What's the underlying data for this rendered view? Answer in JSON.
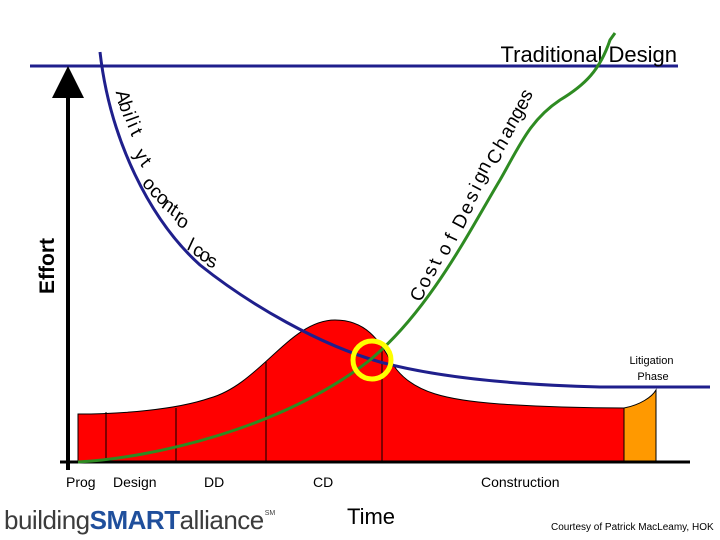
{
  "title": "Traditional Design",
  "y_axis_label": "Effort",
  "x_axis_label": "Time",
  "curve_labels": {
    "ability": "Ability to control cost",
    "cost": "Cost of Design Changes"
  },
  "litigation_label": [
    "Litigation",
    "Phase"
  ],
  "phases": [
    {
      "name": "Prog"
    },
    {
      "name": "Design"
    },
    {
      "name": "DD"
    },
    {
      "name": "CD"
    },
    {
      "name": "Construction"
    }
  ],
  "logo": {
    "part1": "building",
    "part2": "SMART",
    "part3": "alliance",
    "mark": "SM"
  },
  "credit": "Courtesy of Patrick MacLeamy, HOK",
  "colors": {
    "effort_fill": "#ff0000",
    "litigation_fill": "#ff9900",
    "ability_curve": "#1f1f8c",
    "cost_curve": "#2e8b22",
    "highlight_circle": "#ffff00",
    "axis": "#000000"
  }
}
